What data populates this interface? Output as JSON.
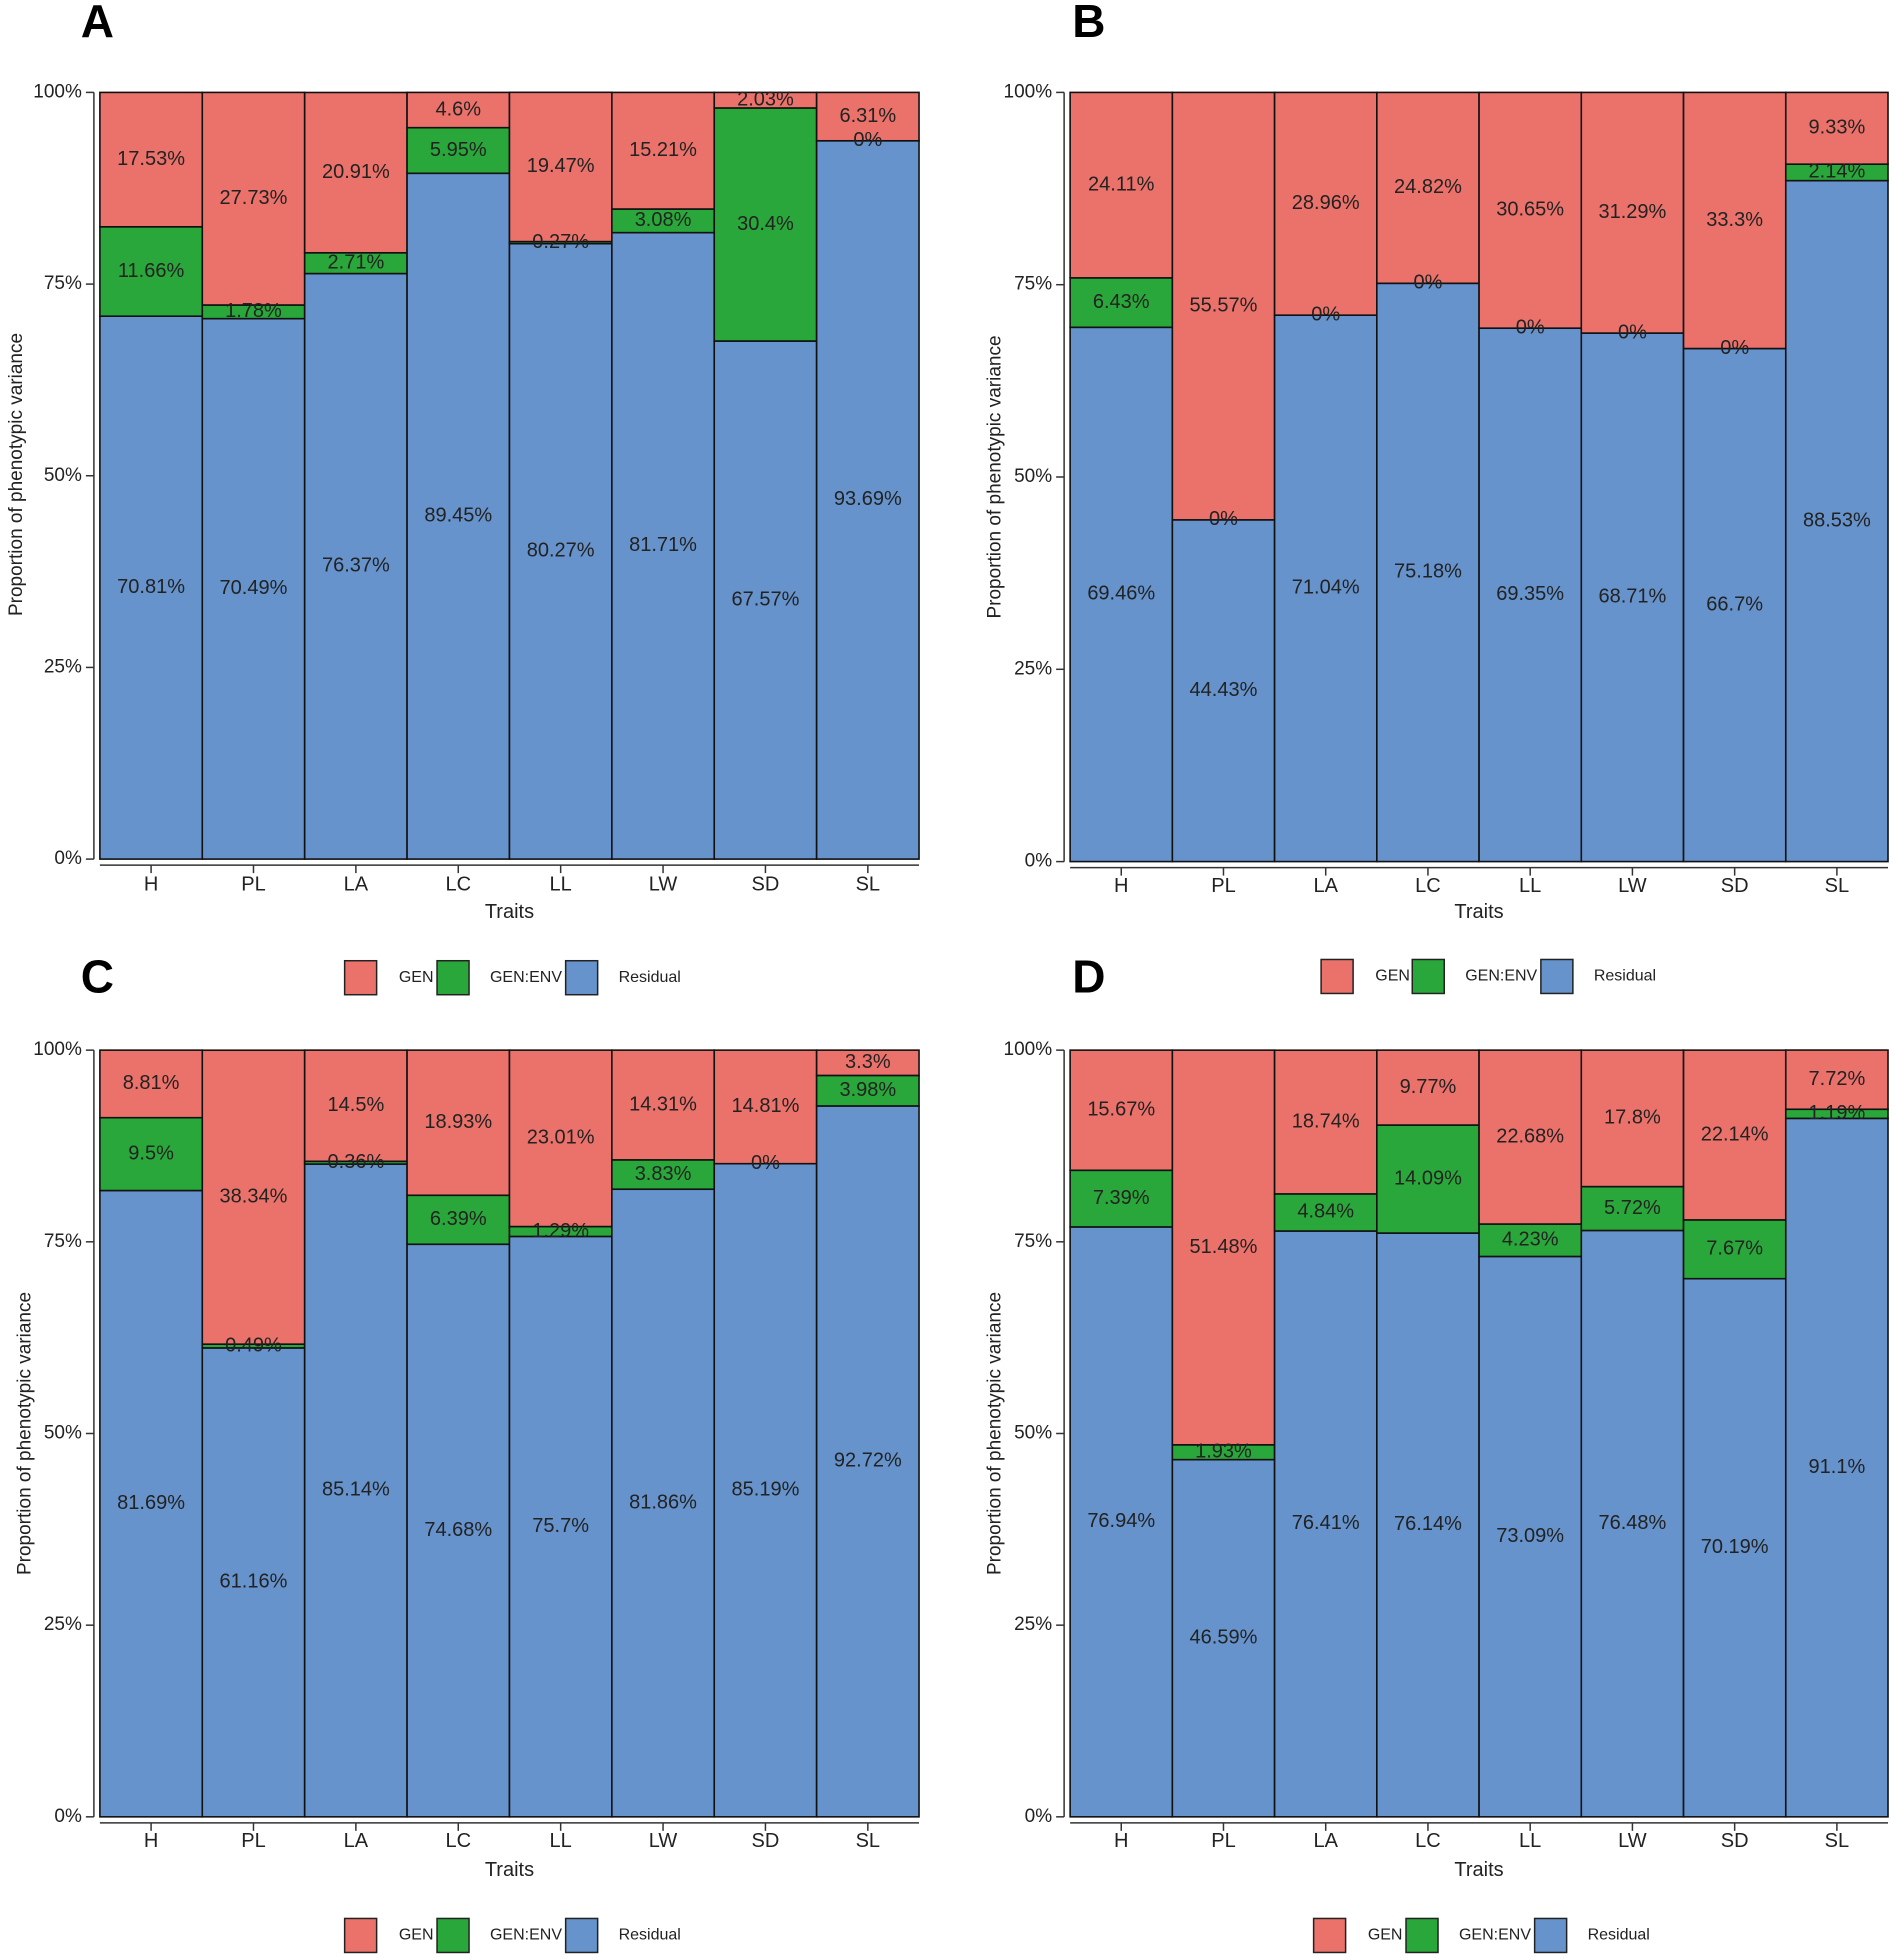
{
  "colors": {
    "GEN": "#ea726b",
    "GEN:ENV": "#2aa73a",
    "Residual": "#6693cc"
  },
  "legend": [
    "GEN",
    "GEN:ENV",
    "Residual"
  ],
  "chart_data": [
    {
      "panel": "A",
      "type": "bar",
      "stacked": true,
      "xlabel": "Traits",
      "ylabel": "Proportion of phenotypic variance",
      "ylim": [
        0,
        100
      ],
      "yticks": [
        "0%",
        "25%",
        "50%",
        "75%",
        "100%"
      ],
      "categories": [
        "H",
        "PL",
        "LA",
        "LC",
        "LL",
        "LW",
        "SD",
        "SL"
      ],
      "series": [
        {
          "name": "Residual",
          "values": [
            70.81,
            70.49,
            76.37,
            89.45,
            80.27,
            81.71,
            67.57,
            93.69
          ],
          "labels": [
            "70.81%",
            "70.49%",
            "76.37%",
            "89.45%",
            "80.27%",
            "81.71%",
            "67.57%",
            "93.69%"
          ]
        },
        {
          "name": "GEN:ENV",
          "values": [
            11.66,
            1.78,
            2.71,
            5.95,
            0.27,
            3.08,
            30.4,
            0
          ],
          "labels": [
            "11.66%",
            "1.78%",
            "2.71%",
            "5.95%",
            "0.27%",
            "3.08%",
            "30.4%",
            "0%"
          ]
        },
        {
          "name": "GEN",
          "values": [
            17.53,
            27.73,
            20.91,
            4.6,
            19.47,
            15.21,
            2.03,
            6.31
          ],
          "labels": [
            "17.53%",
            "27.73%",
            "20.91%",
            "4.6%",
            "19.47%",
            "15.21%",
            "2.03%",
            "6.31%"
          ]
        }
      ]
    },
    {
      "panel": "B",
      "type": "bar",
      "stacked": true,
      "xlabel": "Traits",
      "ylabel": "Proportion of phenotypic variance",
      "ylim": [
        0,
        100
      ],
      "yticks": [
        "0%",
        "25%",
        "50%",
        "75%",
        "100%"
      ],
      "categories": [
        "H",
        "PL",
        "LA",
        "LC",
        "LL",
        "LW",
        "SD",
        "SL"
      ],
      "series": [
        {
          "name": "Residual",
          "values": [
            69.46,
            44.43,
            71.04,
            75.18,
            69.35,
            68.71,
            66.7,
            88.53
          ],
          "labels": [
            "69.46%",
            "44.43%",
            "71.04%",
            "75.18%",
            "69.35%",
            "68.71%",
            "66.7%",
            "88.53%"
          ]
        },
        {
          "name": "GEN:ENV",
          "values": [
            6.43,
            0,
            0,
            0,
            0,
            0,
            0,
            2.14
          ],
          "labels": [
            "6.43%",
            "0%",
            "0%",
            "0%",
            "0%",
            "0%",
            "0%",
            "2.14%"
          ]
        },
        {
          "name": "GEN",
          "values": [
            24.11,
            55.57,
            28.96,
            24.82,
            30.65,
            31.29,
            33.3,
            9.33
          ],
          "labels": [
            "24.11%",
            "55.57%",
            "28.96%",
            "24.82%",
            "30.65%",
            "31.29%",
            "33.3%",
            "9.33%"
          ]
        }
      ]
    },
    {
      "panel": "C",
      "type": "bar",
      "stacked": true,
      "xlabel": "Traits",
      "ylabel": "Proportion of phenotypic variance",
      "ylim": [
        0,
        100
      ],
      "yticks": [
        "0%",
        "25%",
        "50%",
        "75%",
        "100%"
      ],
      "categories": [
        "H",
        "PL",
        "LA",
        "LC",
        "LL",
        "LW",
        "SD",
        "SL"
      ],
      "series": [
        {
          "name": "Residual",
          "values": [
            81.69,
            61.16,
            85.14,
            74.68,
            75.7,
            81.86,
            85.19,
            92.72
          ],
          "labels": [
            "81.69%",
            "61.16%",
            "85.14%",
            "74.68%",
            "75.7%",
            "81.86%",
            "85.19%",
            "92.72%"
          ]
        },
        {
          "name": "GEN:ENV",
          "values": [
            9.5,
            0.49,
            0.36,
            6.39,
            1.29,
            3.83,
            0,
            3.98
          ],
          "labels": [
            "9.5%",
            "0.49%",
            "0.36%",
            "6.39%",
            "1.29%",
            "3.83%",
            "0%",
            "3.98%"
          ]
        },
        {
          "name": "GEN",
          "values": [
            8.81,
            38.34,
            14.5,
            18.93,
            23.01,
            14.31,
            14.81,
            3.3
          ],
          "labels": [
            "8.81%",
            "38.34%",
            "14.5%",
            "18.93%",
            "23.01%",
            "14.31%",
            "14.81%",
            "3.3%"
          ]
        }
      ]
    },
    {
      "panel": "D",
      "type": "bar",
      "stacked": true,
      "xlabel": "Traits",
      "ylabel": "Proportion of phenotypic variance",
      "ylim": [
        0,
        100
      ],
      "yticks": [
        "0%",
        "25%",
        "50%",
        "75%",
        "100%"
      ],
      "categories": [
        "H",
        "PL",
        "LA",
        "LC",
        "LL",
        "LW",
        "SD",
        "SL"
      ],
      "series": [
        {
          "name": "Residual",
          "values": [
            76.94,
            46.59,
            76.41,
            76.14,
            73.09,
            76.48,
            70.19,
            91.1
          ],
          "labels": [
            "76.94%",
            "46.59%",
            "76.41%",
            "76.14%",
            "73.09%",
            "76.48%",
            "70.19%",
            "91.1%"
          ]
        },
        {
          "name": "GEN:ENV",
          "values": [
            7.39,
            1.93,
            4.84,
            14.09,
            4.23,
            5.72,
            7.67,
            1.19
          ],
          "labels": [
            "7.39%",
            "1.93%",
            "4.84%",
            "14.09%",
            "4.23%",
            "5.72%",
            "7.67%",
            "1.19%"
          ]
        },
        {
          "name": "GEN",
          "values": [
            15.67,
            51.48,
            18.74,
            9.77,
            22.68,
            17.8,
            22.14,
            7.72
          ],
          "labels": [
            "15.67%",
            "51.48%",
            "18.74%",
            "9.77%",
            "22.68%",
            "17.8%",
            "22.14%",
            "7.72%"
          ]
        }
      ]
    }
  ]
}
